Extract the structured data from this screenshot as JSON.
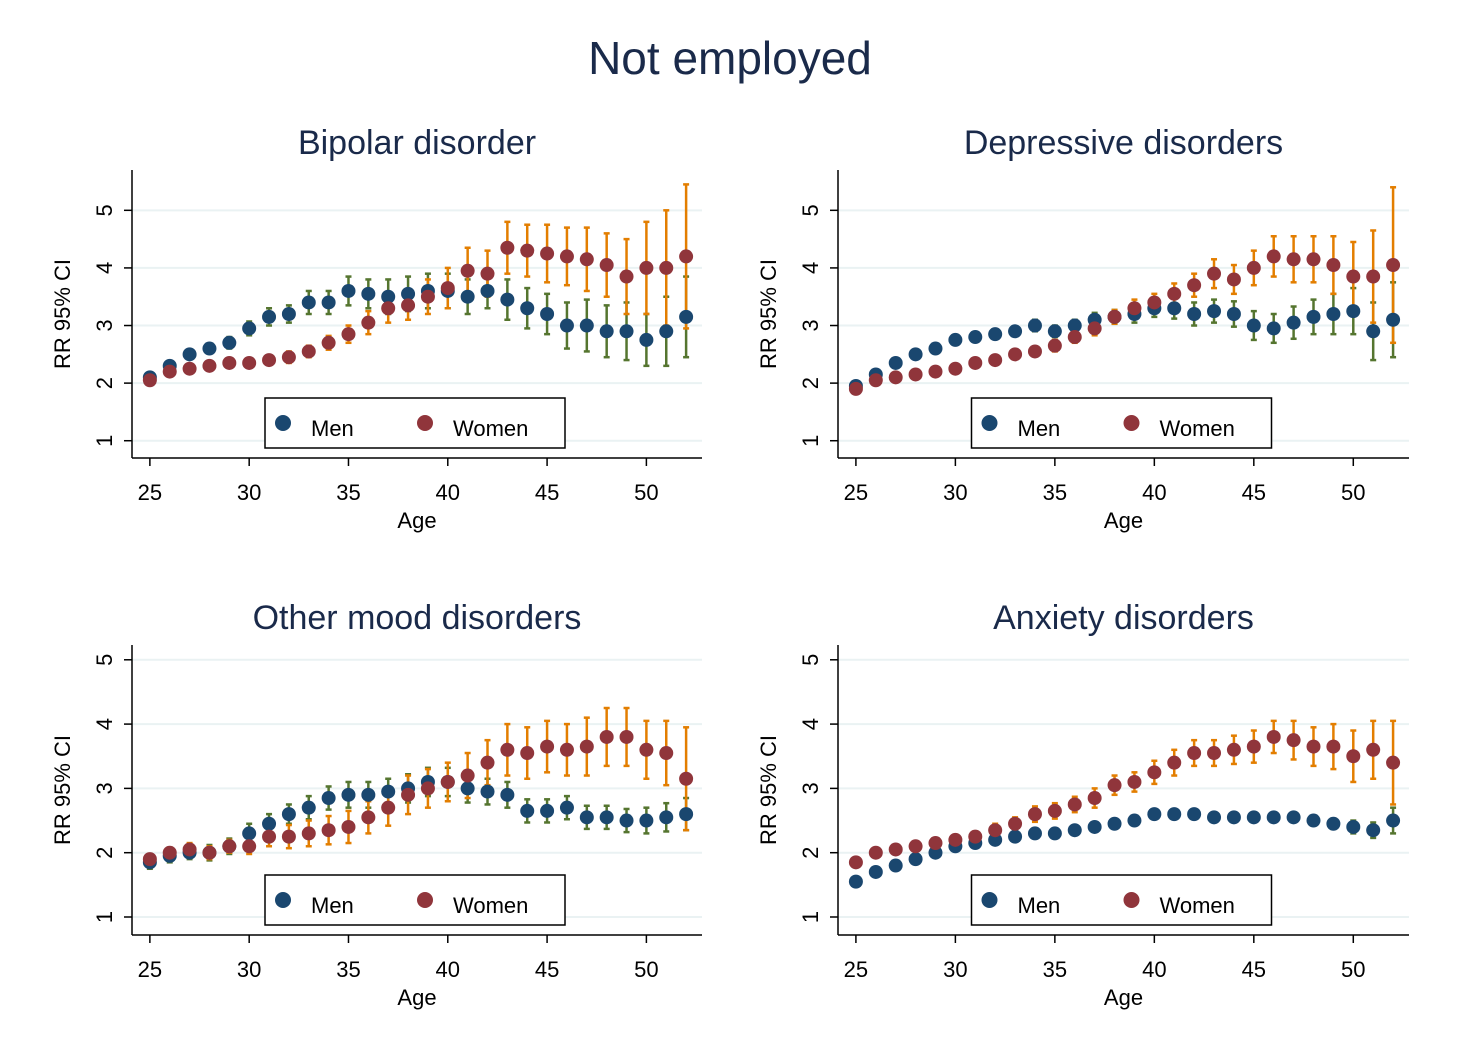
{
  "title": "Not employed",
  "chart_data": [
    {
      "type": "scatter",
      "title": "Bipolar disorder",
      "xlabel": "Age",
      "ylabel": "RR 95% CI",
      "grid": true,
      "legend": "bottom",
      "xlim": [
        24.1,
        52.8
      ],
      "ylim": [
        0.7,
        5.7
      ],
      "xticks": [
        25,
        30,
        35,
        40,
        45,
        50
      ],
      "yticks": [
        1,
        2,
        3,
        4,
        5
      ],
      "x": [
        25,
        26,
        27,
        28,
        29,
        30,
        31,
        32,
        33,
        34,
        35,
        36,
        37,
        38,
        39,
        40,
        41,
        42,
        43,
        44,
        45,
        46,
        47,
        48,
        49,
        50,
        51,
        52
      ],
      "series": [
        {
          "name": "Men",
          "color": "#1a476f",
          "errorbar_color": "#55752f",
          "values": [
            2.1,
            2.3,
            2.5,
            2.6,
            2.7,
            2.95,
            3.15,
            3.2,
            3.4,
            3.4,
            3.6,
            3.55,
            3.5,
            3.55,
            3.6,
            3.6,
            3.5,
            3.6,
            3.45,
            3.3,
            3.2,
            3.0,
            3.0,
            2.9,
            2.9,
            2.75,
            2.9,
            3.15
          ],
          "errors": [
            0.05,
            0.06,
            0.07,
            0.08,
            0.1,
            0.12,
            0.15,
            0.15,
            0.2,
            0.2,
            0.25,
            0.25,
            0.3,
            0.3,
            0.3,
            0.3,
            0.3,
            0.3,
            0.35,
            0.35,
            0.35,
            0.4,
            0.45,
            0.45,
            0.5,
            0.45,
            0.6,
            0.7
          ]
        },
        {
          "name": "Women",
          "color": "#90353b",
          "errorbar_color": "#e37e00",
          "values": [
            2.05,
            2.2,
            2.25,
            2.3,
            2.35,
            2.35,
            2.4,
            2.45,
            2.55,
            2.7,
            2.85,
            3.05,
            3.3,
            3.35,
            3.5,
            3.65,
            3.95,
            3.9,
            4.35,
            4.3,
            4.25,
            4.2,
            4.15,
            4.05,
            3.85,
            4.0,
            4.0,
            4.2
          ],
          "errors": [
            0.05,
            0.05,
            0.06,
            0.06,
            0.07,
            0.07,
            0.08,
            0.1,
            0.1,
            0.12,
            0.15,
            0.2,
            0.25,
            0.25,
            0.3,
            0.35,
            0.4,
            0.4,
            0.45,
            0.45,
            0.5,
            0.5,
            0.55,
            0.55,
            0.65,
            0.8,
            1.0,
            1.25
          ]
        }
      ]
    },
    {
      "type": "scatter",
      "title": "Depressive disorders",
      "xlabel": "Age",
      "ylabel": "RR 95% CI",
      "grid": true,
      "legend": "bottom",
      "xlim": [
        24.1,
        52.8
      ],
      "ylim": [
        0.7,
        5.7
      ],
      "xticks": [
        25,
        30,
        35,
        40,
        45,
        50
      ],
      "yticks": [
        1,
        2,
        3,
        4,
        5
      ],
      "x": [
        25,
        26,
        27,
        28,
        29,
        30,
        31,
        32,
        33,
        34,
        35,
        36,
        37,
        38,
        39,
        40,
        41,
        42,
        43,
        44,
        45,
        46,
        47,
        48,
        49,
        50,
        51,
        52
      ],
      "series": [
        {
          "name": "Men",
          "color": "#1a476f",
          "errorbar_color": "#55752f",
          "values": [
            1.95,
            2.15,
            2.35,
            2.5,
            2.6,
            2.75,
            2.8,
            2.85,
            2.9,
            3.0,
            2.9,
            3.0,
            3.1,
            3.15,
            3.2,
            3.3,
            3.3,
            3.2,
            3.25,
            3.2,
            3.0,
            2.95,
            3.05,
            3.15,
            3.2,
            3.25,
            2.9,
            3.1
          ],
          "errors": [
            0.04,
            0.05,
            0.05,
            0.06,
            0.06,
            0.07,
            0.07,
            0.08,
            0.08,
            0.1,
            0.1,
            0.1,
            0.12,
            0.12,
            0.15,
            0.15,
            0.18,
            0.2,
            0.2,
            0.22,
            0.25,
            0.25,
            0.28,
            0.3,
            0.35,
            0.4,
            0.5,
            0.65
          ]
        },
        {
          "name": "Women",
          "color": "#90353b",
          "errorbar_color": "#e37e00",
          "values": [
            1.9,
            2.05,
            2.1,
            2.15,
            2.2,
            2.25,
            2.35,
            2.4,
            2.5,
            2.55,
            2.65,
            2.8,
            2.95,
            3.15,
            3.3,
            3.4,
            3.55,
            3.7,
            3.9,
            3.8,
            4.0,
            4.2,
            4.15,
            4.15,
            4.05,
            3.85,
            3.85,
            4.05
          ],
          "errors": [
            0.04,
            0.05,
            0.05,
            0.05,
            0.06,
            0.06,
            0.07,
            0.07,
            0.08,
            0.08,
            0.1,
            0.1,
            0.12,
            0.12,
            0.15,
            0.15,
            0.18,
            0.2,
            0.25,
            0.25,
            0.3,
            0.35,
            0.4,
            0.4,
            0.5,
            0.6,
            0.8,
            1.35
          ]
        }
      ]
    },
    {
      "type": "scatter",
      "title": "Other mood disorders",
      "xlabel": "Age",
      "ylabel": "RR 95% CI",
      "grid": true,
      "legend": "bottom",
      "xlim": [
        24.1,
        52.8
      ],
      "ylim": [
        0.72,
        5.23
      ],
      "xticks": [
        25,
        30,
        35,
        40,
        45,
        50
      ],
      "yticks": [
        1,
        2,
        3,
        4,
        5
      ],
      "x": [
        25,
        26,
        27,
        28,
        29,
        30,
        31,
        32,
        33,
        34,
        35,
        36,
        37,
        38,
        39,
        40,
        41,
        42,
        43,
        44,
        45,
        46,
        47,
        48,
        49,
        50,
        51,
        52
      ],
      "series": [
        {
          "name": "Men",
          "color": "#1a476f",
          "errorbar_color": "#55752f",
          "values": [
            1.85,
            1.95,
            2.0,
            2.0,
            2.1,
            2.3,
            2.45,
            2.6,
            2.7,
            2.85,
            2.9,
            2.9,
            2.95,
            3.0,
            3.1,
            3.1,
            3.0,
            2.95,
            2.9,
            2.65,
            2.65,
            2.7,
            2.55,
            2.55,
            2.5,
            2.5,
            2.55,
            2.6
          ],
          "errors": [
            0.1,
            0.1,
            0.1,
            0.12,
            0.12,
            0.15,
            0.15,
            0.15,
            0.18,
            0.18,
            0.2,
            0.2,
            0.2,
            0.22,
            0.22,
            0.22,
            0.22,
            0.2,
            0.2,
            0.18,
            0.18,
            0.18,
            0.18,
            0.18,
            0.18,
            0.2,
            0.22,
            0.25
          ]
        },
        {
          "name": "Women",
          "color": "#90353b",
          "errorbar_color": "#e37e00",
          "values": [
            1.9,
            2.0,
            2.05,
            2.0,
            2.1,
            2.1,
            2.25,
            2.25,
            2.3,
            2.35,
            2.4,
            2.55,
            2.7,
            2.9,
            3.0,
            3.1,
            3.2,
            3.4,
            3.6,
            3.55,
            3.65,
            3.6,
            3.65,
            3.8,
            3.8,
            3.6,
            3.55,
            3.15
          ],
          "errors": [
            0.08,
            0.08,
            0.1,
            0.1,
            0.1,
            0.12,
            0.15,
            0.18,
            0.2,
            0.22,
            0.25,
            0.25,
            0.28,
            0.3,
            0.3,
            0.3,
            0.35,
            0.35,
            0.4,
            0.4,
            0.4,
            0.4,
            0.45,
            0.45,
            0.45,
            0.45,
            0.5,
            0.8
          ]
        }
      ]
    },
    {
      "type": "scatter",
      "title": "Anxiety disorders",
      "xlabel": "Age",
      "ylabel": "RR 95% CI",
      "grid": true,
      "legend": "bottom",
      "xlim": [
        24.1,
        52.8
      ],
      "ylim": [
        0.72,
        5.23
      ],
      "xticks": [
        25,
        30,
        35,
        40,
        45,
        50
      ],
      "yticks": [
        1,
        2,
        3,
        4,
        5
      ],
      "x": [
        25,
        26,
        27,
        28,
        29,
        30,
        31,
        32,
        33,
        34,
        35,
        36,
        37,
        38,
        39,
        40,
        41,
        42,
        43,
        44,
        45,
        46,
        47,
        48,
        49,
        50,
        51,
        52
      ],
      "series": [
        {
          "name": "Men",
          "color": "#1a476f",
          "errorbar_color": "#55752f",
          "values": [
            1.55,
            1.7,
            1.8,
            1.9,
            2.0,
            2.1,
            2.15,
            2.2,
            2.25,
            2.3,
            2.3,
            2.35,
            2.4,
            2.45,
            2.5,
            2.6,
            2.6,
            2.6,
            2.55,
            2.55,
            2.55,
            2.55,
            2.55,
            2.5,
            2.45,
            2.4,
            2.35,
            2.5
          ],
          "errors": [
            0.04,
            0.04,
            0.05,
            0.05,
            0.05,
            0.05,
            0.05,
            0.05,
            0.05,
            0.05,
            0.05,
            0.05,
            0.05,
            0.06,
            0.06,
            0.06,
            0.06,
            0.06,
            0.06,
            0.06,
            0.06,
            0.07,
            0.07,
            0.08,
            0.08,
            0.1,
            0.12,
            0.2
          ]
        },
        {
          "name": "Women",
          "color": "#90353b",
          "errorbar_color": "#e37e00",
          "values": [
            1.85,
            2.0,
            2.05,
            2.1,
            2.15,
            2.2,
            2.25,
            2.35,
            2.45,
            2.6,
            2.65,
            2.75,
            2.85,
            3.05,
            3.1,
            3.25,
            3.4,
            3.55,
            3.55,
            3.6,
            3.65,
            3.8,
            3.75,
            3.65,
            3.65,
            3.5,
            3.6,
            3.4
          ],
          "errors": [
            0.05,
            0.06,
            0.06,
            0.07,
            0.07,
            0.08,
            0.08,
            0.1,
            0.1,
            0.12,
            0.12,
            0.12,
            0.15,
            0.15,
            0.15,
            0.18,
            0.2,
            0.2,
            0.2,
            0.22,
            0.25,
            0.25,
            0.3,
            0.3,
            0.35,
            0.4,
            0.45,
            0.65
          ]
        }
      ]
    }
  ]
}
